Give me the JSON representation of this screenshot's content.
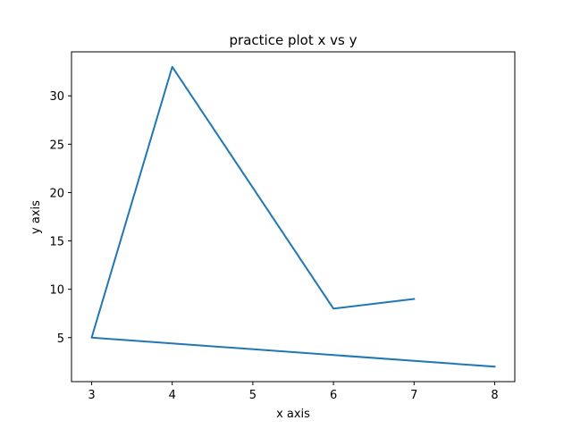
{
  "chart_data": {
    "type": "line",
    "title": "practice plot x vs y",
    "xlabel": "x axis",
    "ylabel": "y axis",
    "xlim": [
      2.75,
      8.25
    ],
    "ylim": [
      0.45,
      34.55
    ],
    "xticks": [
      3,
      4,
      5,
      6,
      7,
      8
    ],
    "yticks": [
      5,
      10,
      15,
      20,
      25,
      30
    ],
    "grid": false,
    "series": [
      {
        "color": "#1f77b4",
        "x": [
          8,
          3,
          4,
          6,
          7
        ],
        "y": [
          2,
          5,
          33,
          8,
          9
        ]
      }
    ]
  }
}
